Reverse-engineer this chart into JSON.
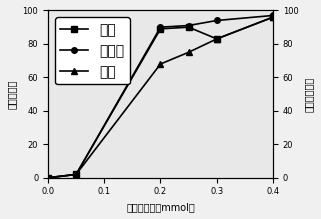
{
  "x_values": [
    0.0,
    0.05,
    0.2,
    0.25,
    0.3,
    0.4
  ],
  "series_oxygen": [
    0,
    2,
    89,
    90,
    83,
    96
  ],
  "series_conversion": [
    0,
    2,
    90,
    91,
    94,
    97
  ],
  "series_yield": [
    0,
    2,
    68,
    75,
    83,
    96
  ],
  "legend_labels": [
    "氧气",
    "转化率",
    "产率"
  ],
  "xlabel": "呐呣的用量（mmol）",
  "ylabel_left": "产率（％）",
  "ylabel_right": "转化率（％）",
  "xlim": [
    0.0,
    0.4
  ],
  "ylim": [
    0,
    100
  ],
  "xticks": [
    0.0,
    0.1,
    0.2,
    0.3,
    0.4
  ],
  "yticks": [
    0,
    20,
    40,
    60,
    80,
    100
  ],
  "line_color": "black",
  "background_color": "#e8e8e8",
  "fontsize_label": 7,
  "fontsize_tick": 6,
  "fontsize_legend": 6.5
}
